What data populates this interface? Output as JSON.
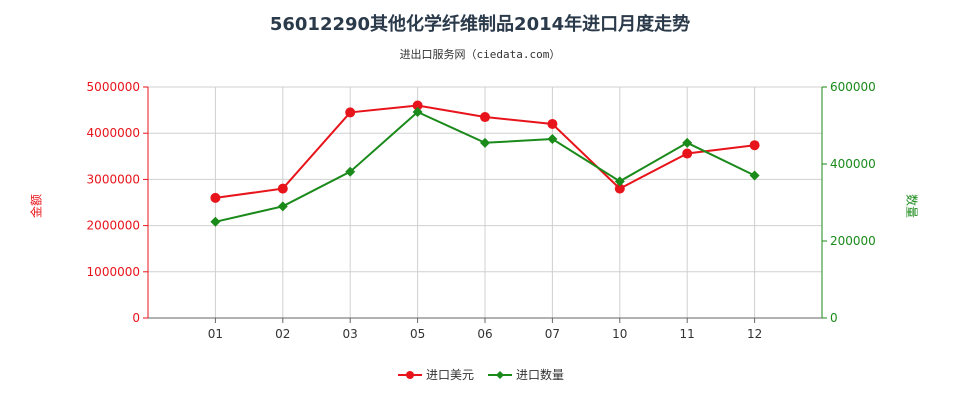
{
  "chart_data": {
    "type": "line",
    "title": "56012290其他化学纤维制品2014年进口月度走势",
    "subtitle": "进出口服务网（ciedata.com）",
    "categories": [
      "01",
      "02",
      "03",
      "05",
      "06",
      "07",
      "10",
      "11",
      "12"
    ],
    "y_left": {
      "label": "金额",
      "range": [
        0,
        5000000
      ],
      "ticks": [
        "0",
        "1000000",
        "2000000",
        "3000000",
        "4000000",
        "5000000"
      ],
      "color": "#e8141b"
    },
    "y_right": {
      "label": "数量",
      "range": [
        0,
        600000
      ],
      "ticks": [
        "0",
        "200000",
        "400000",
        "600000"
      ],
      "color": "#1a8a1a"
    },
    "series": [
      {
        "name": "进口美元",
        "axis": "left",
        "color": "#e8141b",
        "values": [
          2600000,
          2800000,
          4450000,
          4600000,
          4350000,
          4200000,
          2800000,
          3560000,
          3740000
        ]
      },
      {
        "name": "进口数量",
        "axis": "right",
        "color": "#1a8a1a",
        "values": [
          250000,
          290000,
          380000,
          535000,
          455000,
          465000,
          355000,
          455000,
          370000
        ]
      }
    ],
    "grid": true,
    "legend_position": "bottom"
  }
}
